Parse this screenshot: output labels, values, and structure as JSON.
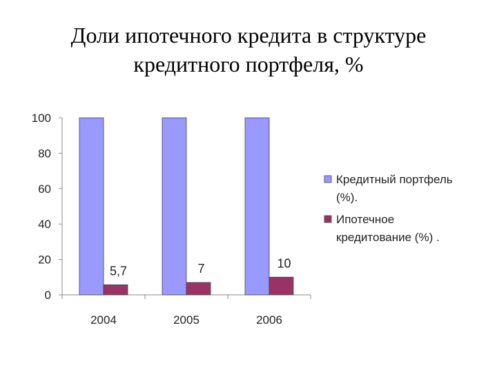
{
  "title": {
    "line1": "Доли ипотечного кредита в структуре",
    "line2": "кредитного портфеля, %"
  },
  "chart_data": {
    "type": "bar",
    "categories": [
      "2004",
      "2005",
      "2006"
    ],
    "series": [
      {
        "name": "Кредитный портфель (%).",
        "legend_lines": [
          "Кредитный портфель",
          "(%)."
        ],
        "values": [
          100,
          100,
          100
        ],
        "color": "#9999ff",
        "labels": [
          "",
          "",
          ""
        ]
      },
      {
        "name": "Ипотечное кредитование (%) .",
        "legend_lines": [
          "Ипотечное",
          "кредитование (%) ."
        ],
        "values": [
          5.7,
          7,
          10
        ],
        "color": "#993366",
        "labels": [
          "5,7",
          "7",
          "10"
        ]
      }
    ],
    "ylim": [
      0,
      100
    ],
    "yticks": [
      "0",
      "20",
      "40",
      "60",
      "80",
      "100"
    ],
    "grid": false,
    "legend": "right"
  }
}
